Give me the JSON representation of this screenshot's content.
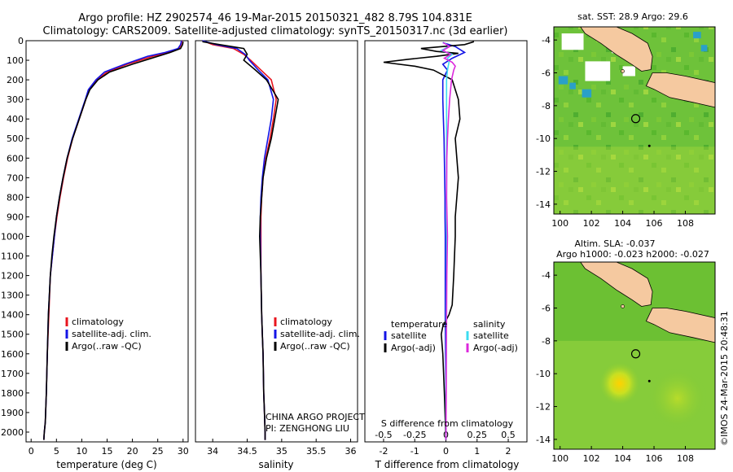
{
  "header": {
    "title_line1": "Argo profile: HZ 2902574_46 19-Mar-2015 20150321_482 8.79S 104.831E",
    "title_line2": "Climatology: CARS2009. Satellite-adjusted climatology: synTS_20150317.nc (3d earlier)"
  },
  "colors": {
    "climatology": "#e8141e",
    "satellite": "#1414e6",
    "argo": "#000000",
    "sat_temp": "#1414e6",
    "sat_sal": "#3cdcf0",
    "argo_sal": "#dc28dc",
    "land": "#f5c9a0"
  },
  "chart_data": [
    {
      "id": "temperature",
      "type": "line",
      "xlabel": "temperature (deg C)",
      "ylabel": "",
      "xlim": [
        -1,
        31
      ],
      "ylim": [
        2050,
        0
      ],
      "xticks": [
        0,
        5,
        10,
        15,
        20,
        25,
        30
      ],
      "yticks": [
        0,
        100,
        200,
        300,
        400,
        500,
        600,
        700,
        800,
        900,
        1000,
        1100,
        1200,
        1300,
        1400,
        1500,
        1600,
        1700,
        1800,
        1900,
        2000
      ],
      "legend": {
        "position": "bottom-left",
        "entries": [
          "climatology",
          "satellite-adj. clim.",
          "Argo(..raw -QC)"
        ]
      },
      "series": [
        {
          "name": "climatology",
          "color_key": "climatology",
          "x": [
            29.8,
            29.6,
            29.2,
            27,
            24,
            19,
            15,
            13,
            11.5,
            10.8,
            9.5,
            8.2,
            7.2,
            6.4,
            5.7,
            5.1,
            4.6,
            4.2,
            3.8,
            3.5,
            3.2,
            3.0,
            2.8,
            2.6,
            2.5
          ],
          "y": [
            0,
            20,
            40,
            60,
            80,
            120,
            160,
            200,
            250,
            300,
            400,
            500,
            600,
            700,
            800,
            900,
            1000,
            1100,
            1200,
            1400,
            1600,
            1800,
            1950,
            2000,
            2040
          ]
        },
        {
          "name": "satellite-adj. clim.",
          "color_key": "satellite",
          "x": [
            29.7,
            29.5,
            29,
            26.5,
            23,
            18.5,
            14.5,
            12.8,
            11.3,
            10.7,
            9.4,
            8.1,
            7.1,
            6.3,
            5.6,
            5.0,
            4.6,
            4.2,
            3.8,
            3.4,
            3.2,
            3.0,
            2.8,
            2.6,
            2.5
          ],
          "y": [
            0,
            20,
            40,
            60,
            80,
            120,
            160,
            200,
            250,
            300,
            400,
            500,
            600,
            700,
            800,
            900,
            1000,
            1100,
            1200,
            1400,
            1600,
            1800,
            1950,
            2000,
            2040
          ]
        },
        {
          "name": "Argo(..raw -QC)",
          "color_key": "argo",
          "x": [
            30,
            29.9,
            29.5,
            27.5,
            25,
            20,
            15.5,
            13.2,
            11.6,
            10.8,
            9.5,
            8.2,
            7.1,
            6.3,
            5.6,
            5.0,
            4.5,
            4.1,
            3.8,
            3.4,
            3.2,
            3.0,
            2.8,
            2.6,
            2.5
          ],
          "y": [
            5,
            20,
            40,
            60,
            80,
            120,
            160,
            200,
            250,
            300,
            400,
            500,
            600,
            700,
            800,
            900,
            1000,
            1100,
            1200,
            1400,
            1600,
            1800,
            1950,
            2000,
            2040
          ]
        }
      ]
    },
    {
      "id": "salinity",
      "type": "line",
      "xlabel": "salinity",
      "xlim": [
        33.75,
        36.1
      ],
      "ylim": [
        2050,
        0
      ],
      "xticks": [
        34,
        34.5,
        35,
        35.5,
        36
      ],
      "xticklabels": [
        "34",
        "34.5",
        "35",
        "35.5",
        "36"
      ],
      "legend": {
        "position": "bottom-left",
        "entries": [
          "climatology",
          "satellite-adj. clim.",
          "Argo(..raw -QC)"
        ]
      },
      "annotation": [
        "CHINA ARGO PROJECT",
        "PI: ZENGHONG LIU"
      ],
      "series": [
        {
          "name": "climatology",
          "color_key": "climatology",
          "x": [
            33.85,
            34.0,
            34.3,
            34.45,
            34.55,
            34.7,
            34.85,
            34.92,
            34.88,
            34.83,
            34.77,
            34.73,
            34.71,
            34.7,
            34.7,
            34.7,
            34.71,
            34.72,
            34.73,
            34.74,
            34.75,
            34.76,
            34.76
          ],
          "y": [
            0,
            20,
            40,
            70,
            100,
            150,
            200,
            300,
            400,
            500,
            600,
            700,
            800,
            900,
            1000,
            1200,
            1400,
            1500,
            1600,
            1800,
            1900,
            2000,
            2040
          ]
        },
        {
          "name": "satellite-adj. clim.",
          "color_key": "satellite",
          "x": [
            33.85,
            34.05,
            34.35,
            34.47,
            34.53,
            34.66,
            34.8,
            34.88,
            34.85,
            34.8,
            34.75,
            34.72,
            34.7,
            34.69,
            34.69,
            34.7,
            34.71,
            34.72,
            34.73,
            34.74,
            34.75,
            34.76,
            34.76
          ],
          "y": [
            0,
            20,
            40,
            70,
            100,
            150,
            200,
            300,
            400,
            500,
            600,
            700,
            800,
            900,
            1000,
            1200,
            1400,
            1500,
            1600,
            1800,
            1900,
            2000,
            2040
          ]
        },
        {
          "name": "Argo(..raw -QC)",
          "color_key": "argo",
          "x": [
            33.85,
            34.1,
            34.45,
            34.5,
            34.45,
            34.62,
            34.78,
            34.95,
            34.9,
            34.85,
            34.78,
            34.73,
            34.71,
            34.69,
            34.68,
            34.7,
            34.71,
            34.72,
            34.73,
            34.74,
            34.75,
            34.76,
            34.76
          ],
          "y": [
            5,
            20,
            40,
            70,
            100,
            150,
            200,
            300,
            400,
            500,
            600,
            700,
            800,
            900,
            1000,
            1200,
            1400,
            1500,
            1600,
            1800,
            1900,
            2000,
            2040
          ]
        }
      ]
    },
    {
      "id": "difference",
      "type": "line",
      "xlabel": "T difference from climatology",
      "xlabel_top": "S difference from climatology",
      "xlim": [
        -2.6,
        2.6
      ],
      "ylim": [
        2050,
        0
      ],
      "xticks": [
        -2,
        -1,
        0,
        1,
        2
      ],
      "xticks_top": [
        "-0.5",
        "-0.25",
        "0",
        "0.25",
        "0.5"
      ],
      "legend": {
        "position": "bottom",
        "temperature_title": "temperature",
        "salinity_title": "salinity",
        "temperature_entries": [
          "satellite",
          "Argo(-adj)"
        ],
        "salinity_entries": [
          "satellite",
          "Argo(-adj)"
        ]
      },
      "series": [
        {
          "name": "satellite",
          "color_key": "sat_temp",
          "x": [
            -0.1,
            0.3,
            0.6,
            0.2,
            -0.1,
            0.05,
            -0.1,
            -0.1,
            -0.08,
            -0.06,
            -0.05,
            -0.04,
            -0.03,
            -0.03,
            -0.02,
            -0.02,
            -0.02,
            -0.01,
            0,
            0
          ],
          "y": [
            10,
            30,
            60,
            90,
            120,
            150,
            200,
            300,
            400,
            500,
            600,
            700,
            800,
            900,
            1000,
            1200,
            1400,
            1600,
            1800,
            2040
          ]
        },
        {
          "name": "Argo(-adj)",
          "color_key": "argo",
          "x": [
            0.9,
            0.6,
            -0.8,
            -0.3,
            0.4,
            -0.3,
            -1.2,
            -2.0,
            -1.0,
            -0.4,
            0.2,
            0.4,
            0.45,
            0.3,
            0.35,
            0.4,
            0.35,
            0.3,
            0.3,
            0.25,
            0.2,
            0.1,
            -0.1,
            -0.15,
            -0.1,
            -0.05,
            0
          ],
          "y": [
            5,
            20,
            40,
            55,
            65,
            80,
            95,
            110,
            130,
            150,
            200,
            300,
            400,
            500,
            600,
            700,
            800,
            900,
            1000,
            1200,
            1350,
            1400,
            1460,
            1500,
            1600,
            1800,
            2040
          ]
        },
        {
          "name": "satellite",
          "color_key": "sat_sal",
          "x": [
            -0.05,
            0.1,
            -0.15,
            0.2,
            0.05,
            0.1,
            0.05,
            0.02,
            0.02,
            0.02,
            0.02,
            0.02,
            0.02,
            0.01,
            0.01,
            0,
            0
          ],
          "y": [
            10,
            30,
            50,
            70,
            90,
            110,
            150,
            200,
            400,
            600,
            800,
            1000,
            1200,
            1400,
            1600,
            1800,
            2040
          ]
        },
        {
          "name": "Argo(-adj)",
          "color_key": "argo_sal",
          "x": [
            -0.08,
            0.12,
            -0.1,
            0.15,
            -0.05,
            0.2,
            0.3,
            0.25,
            0.18,
            0.12,
            0.08,
            0.05,
            0.03,
            0.02,
            0.05,
            0.03,
            0.02,
            0.01,
            0
          ],
          "y": [
            10,
            30,
            50,
            70,
            90,
            110,
            130,
            150,
            200,
            300,
            400,
            500,
            600,
            800,
            1000,
            1200,
            1400,
            1800,
            2040
          ]
        }
      ]
    },
    {
      "id": "sst_map",
      "type": "heatmap",
      "title": "sat. SST: 28.9 Argo: 29.6",
      "xlim": [
        99.6,
        109.9
      ],
      "ylim": [
        -14.6,
        -3.2
      ],
      "xticks": [
        100,
        102,
        104,
        106,
        108
      ],
      "yticks": [
        -4,
        -6,
        -8,
        -10,
        -12,
        -14
      ],
      "marker": {
        "lon": 104.83,
        "lat": -8.79
      }
    },
    {
      "id": "sla_map",
      "type": "heatmap",
      "title_line1": "Altim. SLA: -0.037",
      "title_line2": "Argo h1000: -0.023 h2000: -0.027",
      "xlim": [
        99.6,
        109.9
      ],
      "ylim": [
        -14.6,
        -3.2
      ],
      "xticks": [
        100,
        102,
        104,
        106,
        108
      ],
      "yticks": [
        -4,
        -6,
        -8,
        -10,
        -12,
        -14
      ],
      "marker": {
        "lon": 104.83,
        "lat": -8.79
      }
    }
  ],
  "footer": {
    "stamp": "©IMOS 24-Mar-2015 20:48:31"
  }
}
